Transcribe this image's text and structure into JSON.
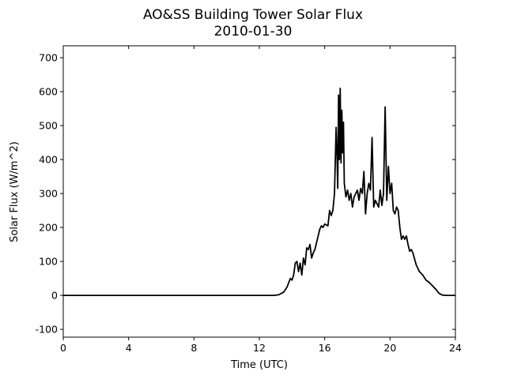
{
  "chart_data": {
    "type": "line",
    "title": "AO&SS Building Tower Solar Flux",
    "subtitle": "2010-01-30",
    "x_label": "Time (UTC)",
    "y_label": "Solar Flux (W/m^2)",
    "color": "#000000",
    "x": [
      0,
      12.9,
      13.2,
      13.5,
      13.7,
      13.9,
      14.0,
      14.1,
      14.2,
      14.3,
      14.4,
      14.5,
      14.6,
      14.7,
      14.8,
      14.9,
      15.0,
      15.1,
      15.2,
      15.3,
      15.4,
      15.5,
      15.6,
      15.7,
      15.8,
      15.9,
      16.0,
      16.2,
      16.3,
      16.4,
      16.5,
      16.6,
      16.7,
      16.75,
      16.8,
      16.85,
      16.9,
      16.95,
      17.0,
      17.05,
      17.1,
      17.15,
      17.2,
      17.3,
      17.4,
      17.5,
      17.6,
      17.7,
      17.8,
      17.9,
      18.0,
      18.1,
      18.2,
      18.3,
      18.4,
      18.5,
      18.6,
      18.7,
      18.8,
      18.9,
      19.0,
      19.1,
      19.2,
      19.3,
      19.4,
      19.5,
      19.6,
      19.7,
      19.75,
      19.8,
      19.9,
      20.0,
      20.1,
      20.2,
      20.3,
      20.4,
      20.5,
      20.6,
      20.7,
      20.8,
      20.9,
      21.0,
      21.1,
      21.2,
      21.3,
      21.4,
      21.6,
      21.8,
      22.0,
      22.2,
      22.4,
      22.6,
      22.8,
      23.0,
      23.2,
      23.5,
      24
    ],
    "values": [
      0,
      0,
      2,
      10,
      25,
      50,
      45,
      60,
      95,
      100,
      70,
      95,
      60,
      110,
      90,
      140,
      135,
      150,
      110,
      125,
      135,
      155,
      175,
      195,
      205,
      200,
      210,
      205,
      250,
      235,
      250,
      300,
      495,
      420,
      315,
      590,
      400,
      610,
      390,
      545,
      420,
      510,
      330,
      290,
      310,
      280,
      300,
      260,
      290,
      300,
      310,
      280,
      315,
      300,
      365,
      240,
      300,
      330,
      310,
      465,
      260,
      280,
      270,
      260,
      310,
      265,
      300,
      555,
      420,
      280,
      380,
      300,
      330,
      250,
      240,
      260,
      250,
      200,
      165,
      175,
      165,
      175,
      150,
      130,
      135,
      125,
      90,
      70,
      60,
      45,
      38,
      28,
      18,
      6,
      1,
      0,
      0
    ],
    "xlim": [
      0,
      24
    ],
    "xticks": [
      0,
      4,
      8,
      12,
      16,
      20,
      24
    ],
    "ylim": [
      -123,
      735
    ],
    "yticks": [
      -100,
      0,
      100,
      200,
      300,
      400,
      500,
      600,
      700
    ]
  }
}
